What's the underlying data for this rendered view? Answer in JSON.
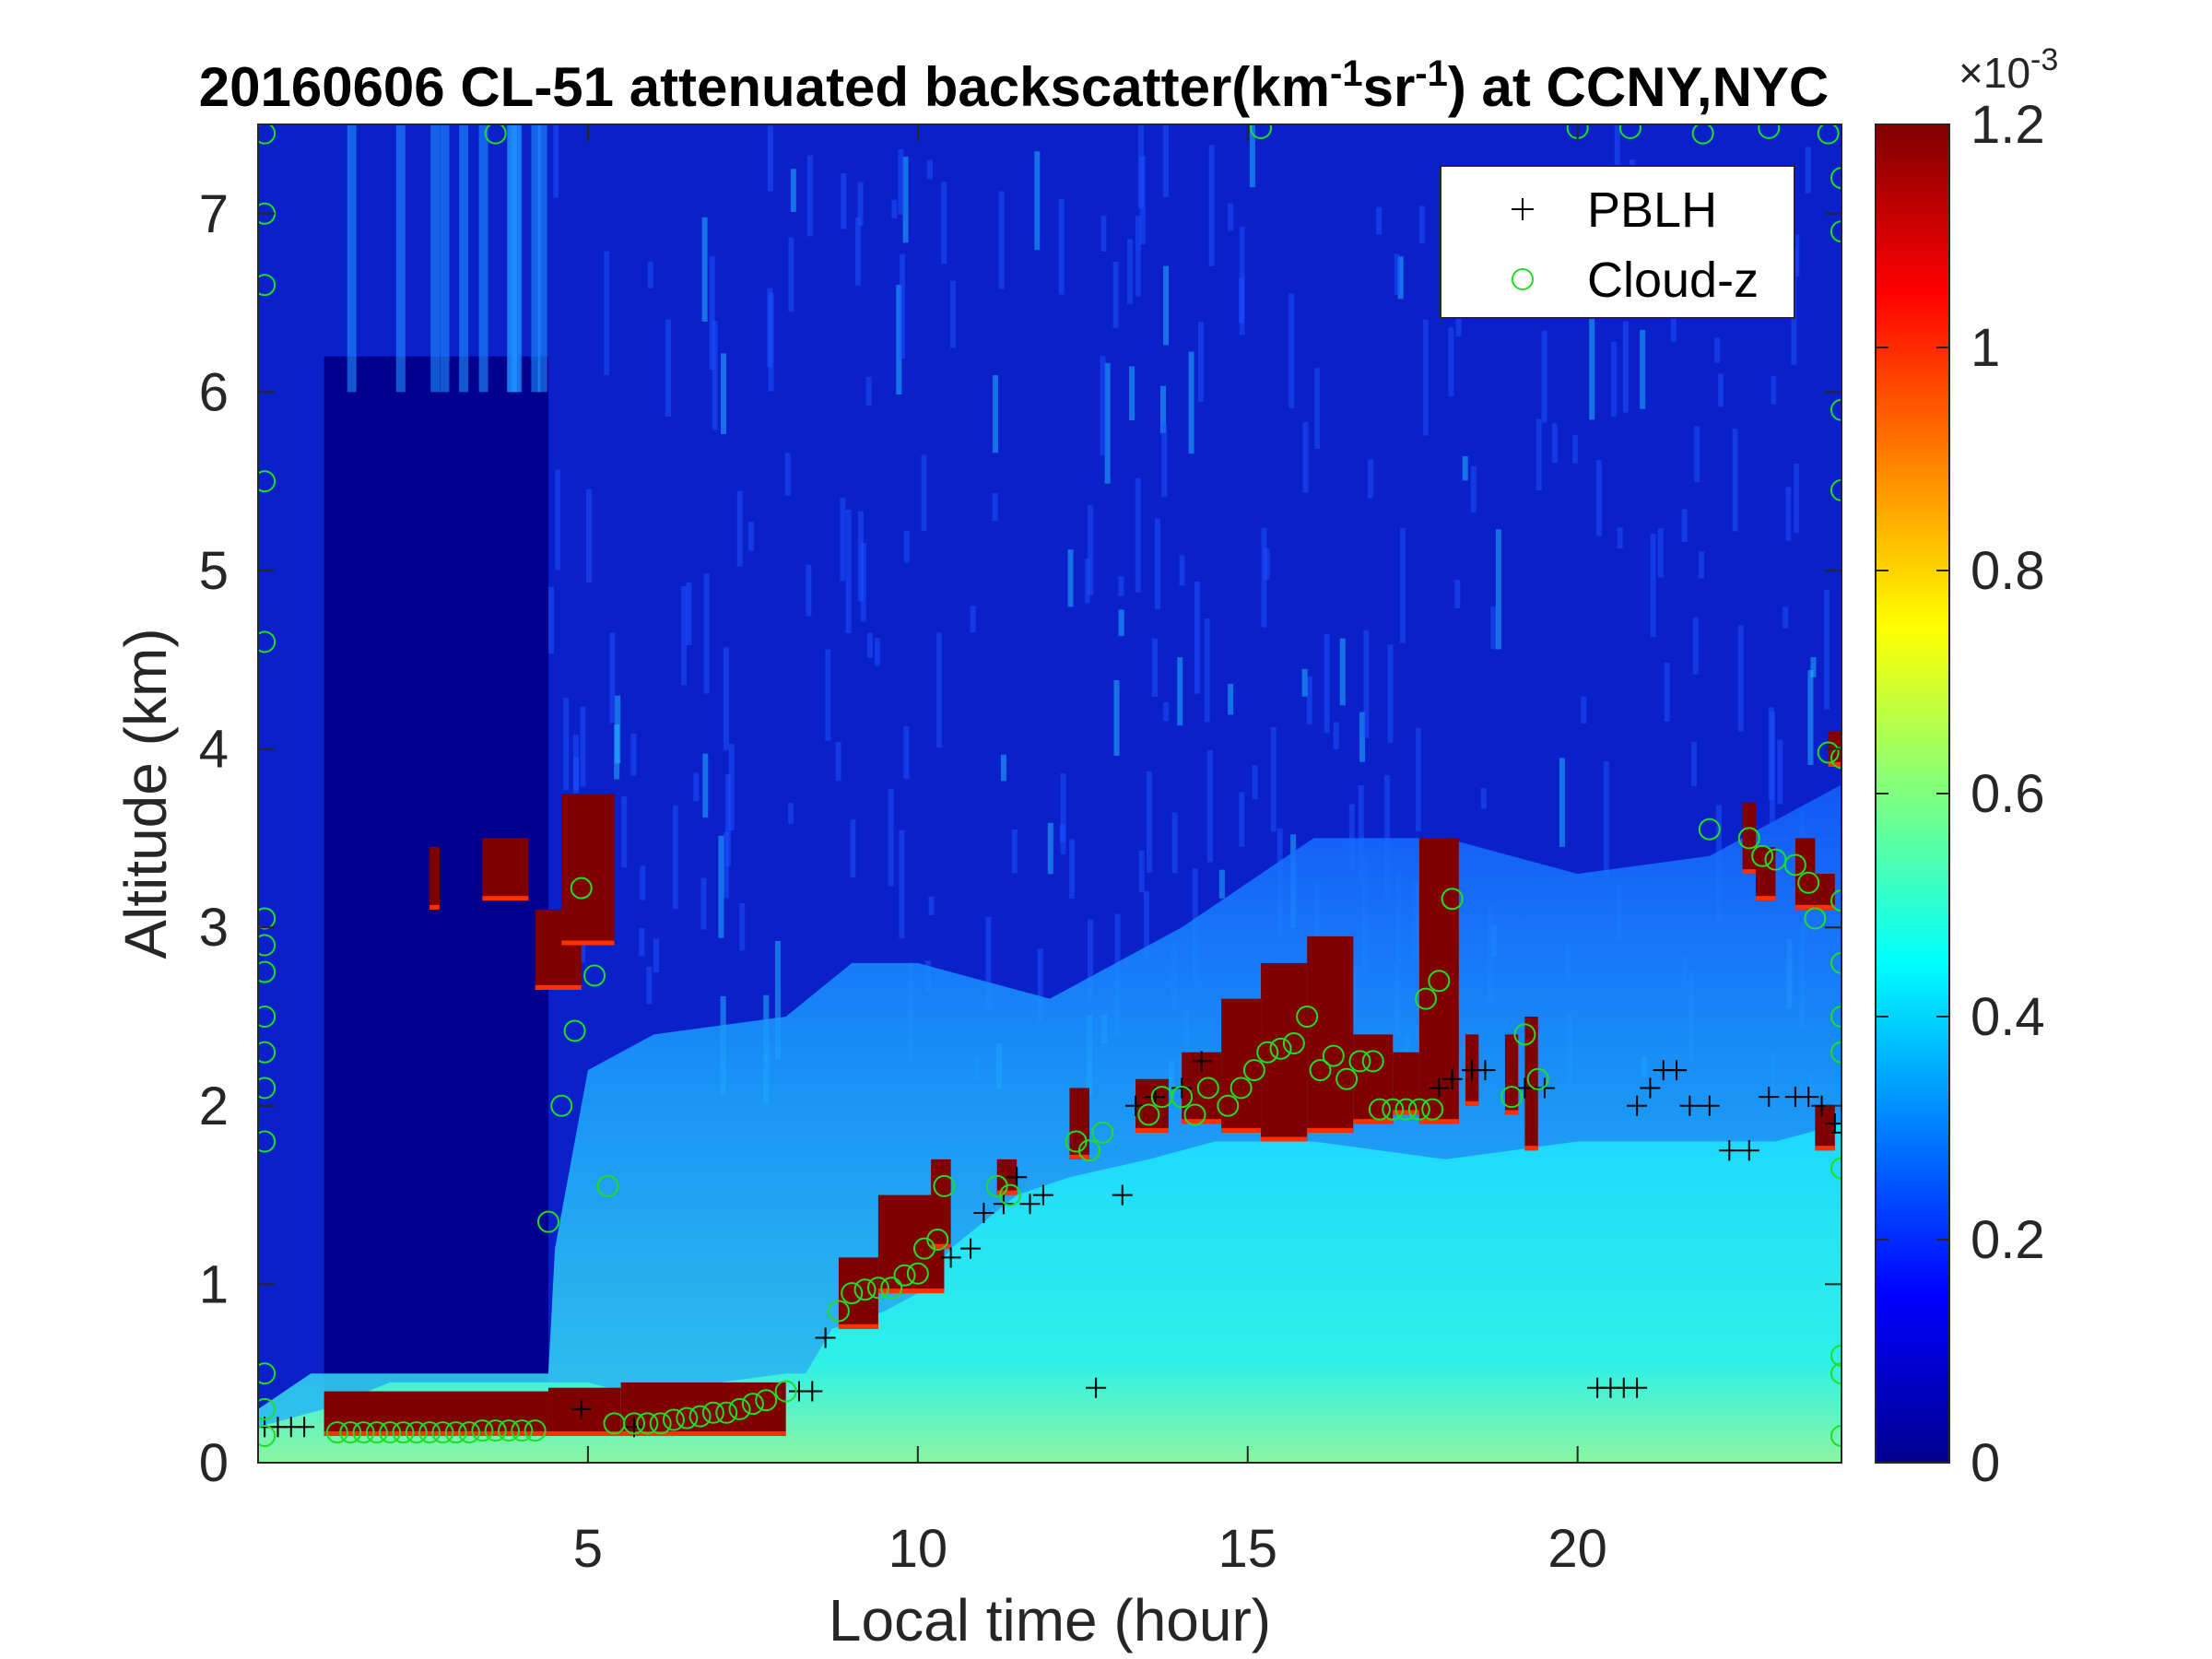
{
  "chart_data": {
    "type": "heatmap",
    "title": {
      "prefix": "20160606  CL-51 attenuated backscatter(km",
      "sup1": "-1",
      "mid": "sr",
      "sup2": "-1",
      "suffix": ") at CCNY,NYC"
    },
    "xlabel": "Local time (hour)",
    "ylabel": "Altitude (km)",
    "xlim": [
      0,
      24
    ],
    "ylim": [
      0,
      7.5
    ],
    "xticks": [
      5,
      10,
      15,
      20
    ],
    "yticks": [
      0,
      1,
      2,
      3,
      4,
      5,
      6,
      7
    ],
    "colorbar": {
      "colormap": "jet",
      "range": [
        0,
        1.2
      ],
      "ticks": [
        "0",
        "0.2",
        "0.4",
        "0.6",
        "0.8",
        "1",
        "1.2"
      ],
      "exponent_label": "×10",
      "exponent": "-3"
    },
    "legend": {
      "location": "top-right",
      "entries": [
        {
          "label": "PBLH",
          "marker": "+",
          "color": "#000000"
        },
        {
          "label": "Cloud-z",
          "marker": "o",
          "color": "#22dd22"
        }
      ]
    },
    "regions": {
      "surface_layer": [
        [
          0,
          0.2
        ],
        [
          1,
          0.3
        ],
        [
          2,
          0.45
        ],
        [
          4,
          0.45
        ],
        [
          5,
          0.45
        ],
        [
          6,
          0.35
        ],
        [
          7,
          0.45
        ],
        [
          8,
          0.5
        ],
        [
          8.3,
          0.5
        ],
        [
          8.7,
          0.75
        ],
        [
          9.5,
          0.85
        ],
        [
          10,
          0.95
        ],
        [
          10.5,
          1.2
        ],
        [
          11.5,
          1.5
        ],
        [
          12.3,
          1.6
        ],
        [
          13.5,
          1.7
        ],
        [
          14.5,
          1.8
        ],
        [
          16,
          1.8
        ],
        [
          18,
          1.7
        ],
        [
          19,
          1.75
        ],
        [
          20,
          1.8
        ],
        [
          21,
          1.8
        ],
        [
          22,
          1.8
        ],
        [
          23,
          1.8
        ],
        [
          24,
          1.9
        ]
      ],
      "mixed_layer_top": [
        [
          0,
          0.3
        ],
        [
          0.8,
          0.5
        ],
        [
          1,
          0.5
        ],
        [
          4.4,
          0.5
        ],
        [
          4.5,
          1.2
        ],
        [
          5,
          2.2
        ],
        [
          6,
          2.4
        ],
        [
          8,
          2.5
        ],
        [
          9,
          2.8
        ],
        [
          10,
          2.8
        ],
        [
          12,
          2.6
        ],
        [
          14,
          3.0
        ],
        [
          16,
          3.5
        ],
        [
          18,
          3.5
        ],
        [
          20,
          3.3
        ],
        [
          22,
          3.4
        ],
        [
          24,
          3.8
        ]
      ],
      "cloud_cells": [
        {
          "t0": 1.0,
          "t1": 4.4,
          "z0": 0.15,
          "z1": 0.4
        },
        {
          "t0": 4.4,
          "t1": 5.5,
          "z0": 0.15,
          "z1": 0.42
        },
        {
          "t0": 5.5,
          "t1": 8.0,
          "z0": 0.15,
          "z1": 0.45
        },
        {
          "t0": 2.6,
          "t1": 2.75,
          "z0": 3.1,
          "z1": 3.45
        },
        {
          "t0": 3.4,
          "t1": 4.1,
          "z0": 3.15,
          "z1": 3.5
        },
        {
          "t0": 4.2,
          "t1": 4.9,
          "z0": 2.65,
          "z1": 3.1
        },
        {
          "t0": 4.6,
          "t1": 5.4,
          "z0": 2.9,
          "z1": 3.75
        },
        {
          "t0": 8.8,
          "t1": 9.4,
          "z0": 0.75,
          "z1": 1.15
        },
        {
          "t0": 9.4,
          "t1": 10.4,
          "z0": 0.95,
          "z1": 1.5
        },
        {
          "t0": 10.2,
          "t1": 10.5,
          "z0": 1.2,
          "z1": 1.7
        },
        {
          "t0": 11.2,
          "t1": 11.5,
          "z0": 1.5,
          "z1": 1.7
        },
        {
          "t0": 12.3,
          "t1": 12.6,
          "z0": 1.7,
          "z1": 2.1
        },
        {
          "t0": 13.3,
          "t1": 13.8,
          "z0": 1.85,
          "z1": 2.15
        },
        {
          "t0": 14.0,
          "t1": 14.6,
          "z0": 1.9,
          "z1": 2.3
        },
        {
          "t0": 14.6,
          "t1": 15.2,
          "z0": 1.85,
          "z1": 2.6
        },
        {
          "t0": 15.2,
          "t1": 15.9,
          "z0": 1.8,
          "z1": 2.8
        },
        {
          "t0": 15.9,
          "t1": 16.6,
          "z0": 1.85,
          "z1": 2.95
        },
        {
          "t0": 16.6,
          "t1": 17.2,
          "z0": 1.9,
          "z1": 2.4
        },
        {
          "t0": 17.2,
          "t1": 17.6,
          "z0": 1.95,
          "z1": 2.3
        },
        {
          "t0": 17.6,
          "t1": 18.2,
          "z0": 1.9,
          "z1": 3.5
        },
        {
          "t0": 18.3,
          "t1": 18.5,
          "z0": 2.0,
          "z1": 2.4
        },
        {
          "t0": 18.9,
          "t1": 19.1,
          "z0": 1.95,
          "z1": 2.4
        },
        {
          "t0": 19.2,
          "t1": 19.4,
          "z0": 1.75,
          "z1": 2.5
        },
        {
          "t0": 22.5,
          "t1": 22.7,
          "z0": 3.3,
          "z1": 3.7
        },
        {
          "t0": 22.7,
          "t1": 23.0,
          "z0": 3.15,
          "z1": 3.45
        },
        {
          "t0": 23.3,
          "t1": 23.6,
          "z0": 3.1,
          "z1": 3.5
        },
        {
          "t0": 23.6,
          "t1": 23.9,
          "z0": 1.75,
          "z1": 2.0
        },
        {
          "t0": 23.6,
          "t1": 23.9,
          "z0": 3.1,
          "z1": 3.3
        },
        {
          "t0": 23.8,
          "t1": 24.0,
          "z0": 3.9,
          "z1": 4.1
        }
      ]
    },
    "pblh": [
      {
        "t": 0.1,
        "z": 0.2
      },
      {
        "t": 0.3,
        "z": 0.2
      },
      {
        "t": 0.5,
        "z": 0.2
      },
      {
        "t": 0.7,
        "z": 0.2
      },
      {
        "t": 4.9,
        "z": 0.3
      },
      {
        "t": 5.7,
        "z": 0.2
      },
      {
        "t": 8.2,
        "z": 0.4
      },
      {
        "t": 8.4,
        "z": 0.4
      },
      {
        "t": 8.6,
        "z": 0.7
      },
      {
        "t": 10.5,
        "z": 1.15
      },
      {
        "t": 10.8,
        "z": 1.2
      },
      {
        "t": 11.0,
        "z": 1.4
      },
      {
        "t": 11.3,
        "z": 1.45
      },
      {
        "t": 11.5,
        "z": 1.6
      },
      {
        "t": 11.7,
        "z": 1.45
      },
      {
        "t": 11.9,
        "z": 1.5
      },
      {
        "t": 12.7,
        "z": 0.42
      },
      {
        "t": 13.1,
        "z": 1.5
      },
      {
        "t": 13.3,
        "z": 2.0
      },
      {
        "t": 13.6,
        "z": 2.05
      },
      {
        "t": 14.0,
        "z": 2.1
      },
      {
        "t": 14.3,
        "z": 2.25
      },
      {
        "t": 17.9,
        "z": 2.1
      },
      {
        "t": 18.1,
        "z": 2.15
      },
      {
        "t": 18.4,
        "z": 2.2
      },
      {
        "t": 18.6,
        "z": 2.2
      },
      {
        "t": 19.2,
        "z": 2.1
      },
      {
        "t": 19.5,
        "z": 2.1
      },
      {
        "t": 20.3,
        "z": 0.42
      },
      {
        "t": 20.5,
        "z": 0.42
      },
      {
        "t": 20.7,
        "z": 0.42
      },
      {
        "t": 20.9,
        "z": 0.42
      },
      {
        "t": 20.9,
        "z": 2.0
      },
      {
        "t": 21.1,
        "z": 2.1
      },
      {
        "t": 21.3,
        "z": 2.2
      },
      {
        "t": 21.5,
        "z": 2.2
      },
      {
        "t": 21.7,
        "z": 2.0
      },
      {
        "t": 22.0,
        "z": 2.0
      },
      {
        "t": 22.3,
        "z": 1.75
      },
      {
        "t": 22.6,
        "z": 1.75
      },
      {
        "t": 22.9,
        "z": 2.05
      },
      {
        "t": 23.3,
        "z": 2.05
      },
      {
        "t": 23.5,
        "z": 2.05
      },
      {
        "t": 23.7,
        "z": 2.0
      },
      {
        "t": 23.9,
        "z": 1.9
      },
      {
        "t": 24.0,
        "z": 1.85
      }
    ],
    "cloud_z": [
      {
        "t": 1.2,
        "z": 0.17
      },
      {
        "t": 1.4,
        "z": 0.17
      },
      {
        "t": 1.6,
        "z": 0.17
      },
      {
        "t": 1.8,
        "z": 0.17
      },
      {
        "t": 2.0,
        "z": 0.17
      },
      {
        "t": 2.2,
        "z": 0.17
      },
      {
        "t": 2.4,
        "z": 0.17
      },
      {
        "t": 2.6,
        "z": 0.17
      },
      {
        "t": 2.8,
        "z": 0.17
      },
      {
        "t": 3.0,
        "z": 0.17
      },
      {
        "t": 3.2,
        "z": 0.17
      },
      {
        "t": 3.4,
        "z": 0.18
      },
      {
        "t": 3.6,
        "z": 0.18
      },
      {
        "t": 3.8,
        "z": 0.18
      },
      {
        "t": 4.0,
        "z": 0.18
      },
      {
        "t": 4.2,
        "z": 0.18
      },
      {
        "t": 5.4,
        "z": 0.22
      },
      {
        "t": 5.7,
        "z": 0.22
      },
      {
        "t": 5.9,
        "z": 0.22
      },
      {
        "t": 6.1,
        "z": 0.22
      },
      {
        "t": 6.3,
        "z": 0.24
      },
      {
        "t": 6.5,
        "z": 0.25
      },
      {
        "t": 6.7,
        "z": 0.26
      },
      {
        "t": 6.9,
        "z": 0.28
      },
      {
        "t": 7.1,
        "z": 0.28
      },
      {
        "t": 7.3,
        "z": 0.3
      },
      {
        "t": 7.5,
        "z": 0.33
      },
      {
        "t": 7.7,
        "z": 0.35
      },
      {
        "t": 8.0,
        "z": 0.4
      },
      {
        "t": 4.4,
        "z": 1.35
      },
      {
        "t": 4.6,
        "z": 2.0
      },
      {
        "t": 4.8,
        "z": 2.42
      },
      {
        "t": 5.1,
        "z": 2.73
      },
      {
        "t": 4.9,
        "z": 3.22
      },
      {
        "t": 5.3,
        "z": 1.55
      },
      {
        "t": 8.8,
        "z": 0.85
      },
      {
        "t": 9.0,
        "z": 0.95
      },
      {
        "t": 9.2,
        "z": 0.97
      },
      {
        "t": 9.4,
        "z": 0.98
      },
      {
        "t": 9.6,
        "z": 0.98
      },
      {
        "t": 9.8,
        "z": 1.05
      },
      {
        "t": 10.0,
        "z": 1.06
      },
      {
        "t": 10.1,
        "z": 1.2
      },
      {
        "t": 10.3,
        "z": 1.25
      },
      {
        "t": 10.4,
        "z": 1.55
      },
      {
        "t": 11.2,
        "z": 1.55
      },
      {
        "t": 11.4,
        "z": 1.5
      },
      {
        "t": 12.4,
        "z": 1.8
      },
      {
        "t": 12.6,
        "z": 1.75
      },
      {
        "t": 12.8,
        "z": 1.85
      },
      {
        "t": 13.5,
        "z": 1.95
      },
      {
        "t": 13.7,
        "z": 2.05
      },
      {
        "t": 14.0,
        "z": 2.05
      },
      {
        "t": 14.2,
        "z": 1.95
      },
      {
        "t": 14.4,
        "z": 2.1
      },
      {
        "t": 14.7,
        "z": 2.0
      },
      {
        "t": 14.9,
        "z": 2.1
      },
      {
        "t": 15.1,
        "z": 2.2
      },
      {
        "t": 15.3,
        "z": 2.3
      },
      {
        "t": 15.5,
        "z": 2.32
      },
      {
        "t": 15.7,
        "z": 2.35
      },
      {
        "t": 15.9,
        "z": 2.5
      },
      {
        "t": 16.1,
        "z": 2.2
      },
      {
        "t": 16.3,
        "z": 2.28
      },
      {
        "t": 16.5,
        "z": 2.15
      },
      {
        "t": 16.7,
        "z": 2.25
      },
      {
        "t": 16.9,
        "z": 2.25
      },
      {
        "t": 17.0,
        "z": 1.98
      },
      {
        "t": 17.2,
        "z": 1.98
      },
      {
        "t": 17.4,
        "z": 1.98
      },
      {
        "t": 17.6,
        "z": 1.98
      },
      {
        "t": 17.8,
        "z": 1.98
      },
      {
        "t": 17.7,
        "z": 2.6
      },
      {
        "t": 17.9,
        "z": 2.7
      },
      {
        "t": 18.1,
        "z": 3.16
      },
      {
        "t": 19.0,
        "z": 2.05
      },
      {
        "t": 19.2,
        "z": 2.4
      },
      {
        "t": 19.4,
        "z": 2.15
      },
      {
        "t": 22.0,
        "z": 3.55
      },
      {
        "t": 22.6,
        "z": 3.5
      },
      {
        "t": 22.8,
        "z": 3.4
      },
      {
        "t": 23.0,
        "z": 3.38
      },
      {
        "t": 23.3,
        "z": 3.35
      },
      {
        "t": 23.5,
        "z": 3.25
      },
      {
        "t": 23.6,
        "z": 3.05
      },
      {
        "t": 23.8,
        "z": 3.98
      },
      {
        "t": 24.0,
        "z": 3.95
      },
      {
        "t": 0.1,
        "z": 7.45
      },
      {
        "t": 0.1,
        "z": 7.0
      },
      {
        "t": 0.1,
        "z": 6.6
      },
      {
        "t": 0.1,
        "z": 5.5
      },
      {
        "t": 0.1,
        "z": 4.6
      },
      {
        "t": 0.1,
        "z": 3.05
      },
      {
        "t": 0.1,
        "z": 2.9
      },
      {
        "t": 0.1,
        "z": 2.75
      },
      {
        "t": 0.1,
        "z": 2.5
      },
      {
        "t": 0.1,
        "z": 2.3
      },
      {
        "t": 0.1,
        "z": 2.1
      },
      {
        "t": 0.1,
        "z": 1.8
      },
      {
        "t": 0.1,
        "z": 0.5
      },
      {
        "t": 0.1,
        "z": 0.3
      },
      {
        "t": 0.1,
        "z": 0.15
      },
      {
        "t": 3.6,
        "z": 7.45
      },
      {
        "t": 15.2,
        "z": 7.48
      },
      {
        "t": 20.0,
        "z": 7.48
      },
      {
        "t": 20.8,
        "z": 7.48
      },
      {
        "t": 21.9,
        "z": 7.45
      },
      {
        "t": 22.9,
        "z": 7.48
      },
      {
        "t": 23.8,
        "z": 7.45
      },
      {
        "t": 24.0,
        "z": 7.2
      },
      {
        "t": 24.0,
        "z": 6.9
      },
      {
        "t": 24.0,
        "z": 5.9
      },
      {
        "t": 24.0,
        "z": 5.45
      },
      {
        "t": 24.0,
        "z": 3.15
      },
      {
        "t": 24.0,
        "z": 2.8
      },
      {
        "t": 24.0,
        "z": 2.5
      },
      {
        "t": 24.0,
        "z": 2.3
      },
      {
        "t": 24.0,
        "z": 1.65
      },
      {
        "t": 24.0,
        "z": 0.6
      },
      {
        "t": 24.0,
        "z": 0.5
      },
      {
        "t": 24.0,
        "z": 0.15
      }
    ]
  }
}
